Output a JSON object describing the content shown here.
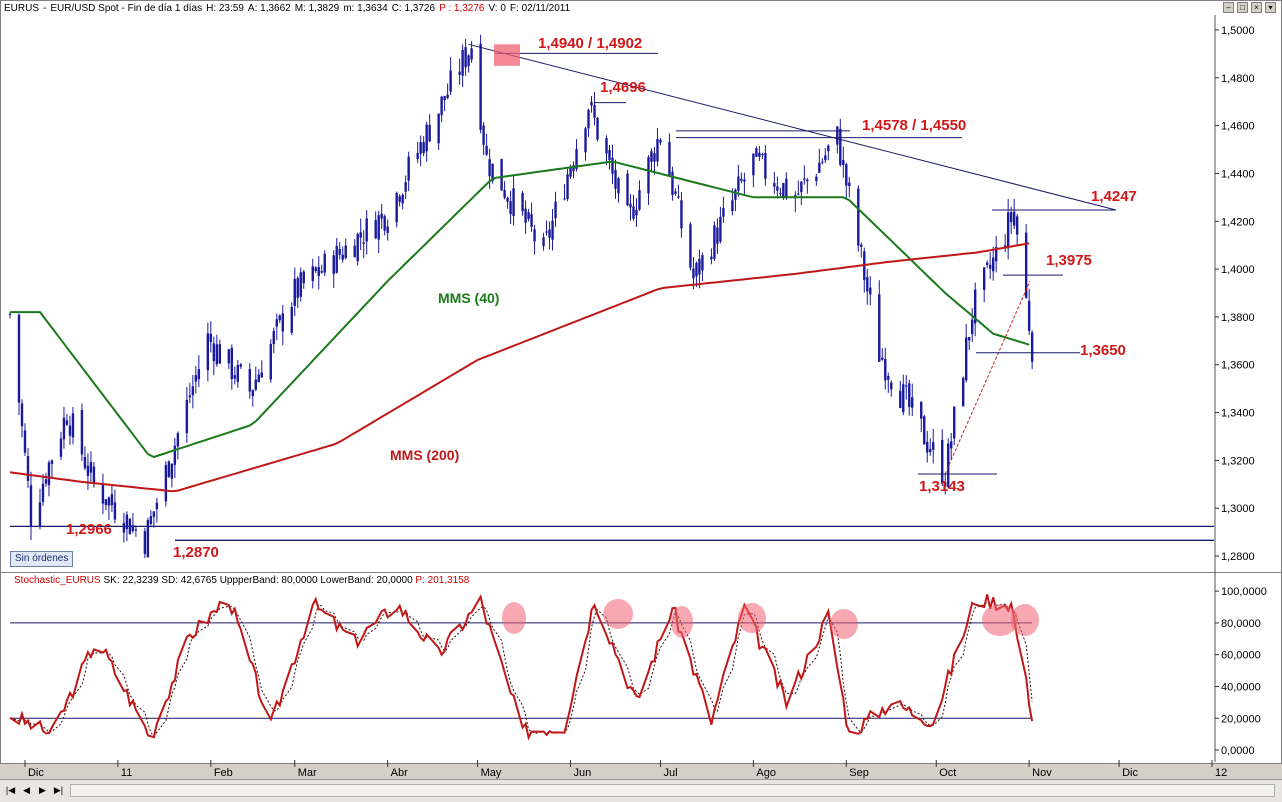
{
  "header": {
    "symbol": "EURUS",
    "description": "EUR/USD Spot - Fin de día 1 días",
    "h": "H: 23:59",
    "a": "A: 1,3662",
    "m": "M: 1,3829",
    "mm": "m: 1,3634",
    "c": "C: 1,3726",
    "p": "P : 1,3276",
    "v": "V: 0",
    "f": "F: 02/11/2011"
  },
  "orders_label": "Sin órdenes",
  "stoch_header": {
    "name": "Stochastic_EURUS",
    "sk": "SK: 22,3239",
    "sd": "SD: 42,6765",
    "upper": "UppperBand: 80,0000",
    "lower": "LowerBand: 20,0000",
    "p": "P: 201,3158"
  },
  "colors": {
    "candle": "#1a1a9c",
    "mms40": "#1a7a1a",
    "mms200": "#c01818",
    "annotation": "#d01818",
    "trend": "#1a1a6a",
    "stoch_k": "#c01818",
    "stoch_d": "#3a0a0a",
    "highlight": "#f06070"
  },
  "chart_data": [
    {
      "type": "candlestick",
      "title": "EURUS - EUR/USD Spot - Fin de día 1 días",
      "x_tick_labels": [
        "Dic",
        "11",
        "Feb",
        "Mar",
        "Abr",
        "May",
        "Jun",
        "Jul",
        "Ago",
        "Sep",
        "Oct",
        "Nov",
        "Dic",
        "12"
      ],
      "y_tick_labels": [
        "1,5000",
        "1,4800",
        "1,4600",
        "1,4400",
        "1,4200",
        "1,4000",
        "1,3800",
        "1,3600",
        "1,3400",
        "1,3200",
        "1,3000",
        "1,2800"
      ],
      "ylim": [
        1.275,
        1.505
      ],
      "monthly_price_path": {
        "x": [
          "2010-11-26",
          "2010-12-03",
          "2010-12-15",
          "2010-12-24",
          "2011-01-10",
          "2011-01-31",
          "2011-02-14",
          "2011-03-01",
          "2011-04-01",
          "2011-04-29",
          "2011-05-04",
          "2011-05-23",
          "2011-06-07",
          "2011-06-20",
          "2011-07-01",
          "2011-07-12",
          "2011-08-01",
          "2011-08-15",
          "2011-08-29",
          "2011-09-06",
          "2011-09-12",
          "2011-10-04",
          "2011-10-13",
          "2011-10-27",
          "2011-11-02"
        ],
        "y": [
          1.381,
          1.297,
          1.34,
          1.31,
          1.287,
          1.371,
          1.349,
          1.39,
          1.424,
          1.494,
          1.446,
          1.407,
          1.469,
          1.42,
          1.457,
          1.396,
          1.445,
          1.43,
          1.455,
          1.404,
          1.365,
          1.314,
          1.382,
          1.424,
          1.368
        ]
      },
      "series": [
        {
          "name": "MMS (40)",
          "x": [
            "2010-11-26",
            "2010-12-06",
            "2011-01-12",
            "2011-02-15",
            "2011-04-01",
            "2011-05-06",
            "2011-06-15",
            "2011-08-01",
            "2011-09-01",
            "2011-10-04",
            "2011-10-20",
            "2011-11-02"
          ],
          "y": [
            1.382,
            1.382,
            1.321,
            1.335,
            1.395,
            1.438,
            1.445,
            1.43,
            1.43,
            1.39,
            1.373,
            1.368
          ]
        },
        {
          "name": "MMS (200)",
          "x": [
            "2010-11-26",
            "2010-12-20",
            "2011-01-20",
            "2011-03-15",
            "2011-05-01",
            "2011-07-01",
            "2011-08-15",
            "2011-09-15",
            "2011-10-15",
            "2011-11-02"
          ],
          "y": [
            1.315,
            1.311,
            1.307,
            1.327,
            1.362,
            1.392,
            1.398,
            1.403,
            1.407,
            1.411
          ]
        }
      ],
      "annotations": [
        "1,4940 / 1,4902",
        "1,4696",
        "1,4578 / 1,4550",
        "1,4247",
        "1,3975",
        "1,3650",
        "1,3143",
        "1,2966",
        "1,2870",
        "MMS (40)",
        "MMS (200)"
      ],
      "grid": false
    },
    {
      "type": "line",
      "title": "Stochastic_EURUS",
      "y_tick_labels": [
        "100,0000",
        "80,0000",
        "60,0000",
        "40,0000",
        "20,0000",
        "0,0000"
      ],
      "ylim": [
        -5,
        107
      ],
      "bands": [
        80,
        20
      ],
      "series": [
        {
          "name": "SK",
          "x": [
            "2010-11-26",
            "2010-12-10",
            "2010-12-25",
            "2011-01-12",
            "2011-01-25",
            "2011-02-07",
            "2011-02-21",
            "2011-03-07",
            "2011-03-21",
            "2011-04-04",
            "2011-04-18",
            "2011-05-02",
            "2011-05-16",
            "2011-05-30",
            "2011-06-09",
            "2011-06-23",
            "2011-07-05",
            "2011-07-18",
            "2011-07-29",
            "2011-08-12",
            "2011-08-26",
            "2011-09-02",
            "2011-09-16",
            "2011-09-30",
            "2011-10-14",
            "2011-10-26",
            "2011-11-02"
          ],
          "y": [
            22,
            10,
            70,
            8,
            72,
            96,
            15,
            92,
            68,
            92,
            60,
            94,
            12,
            15,
            95,
            30,
            90,
            18,
            90,
            30,
            85,
            10,
            30,
            18,
            95,
            92,
            22
          ]
        }
      ],
      "grid": false
    }
  ]
}
